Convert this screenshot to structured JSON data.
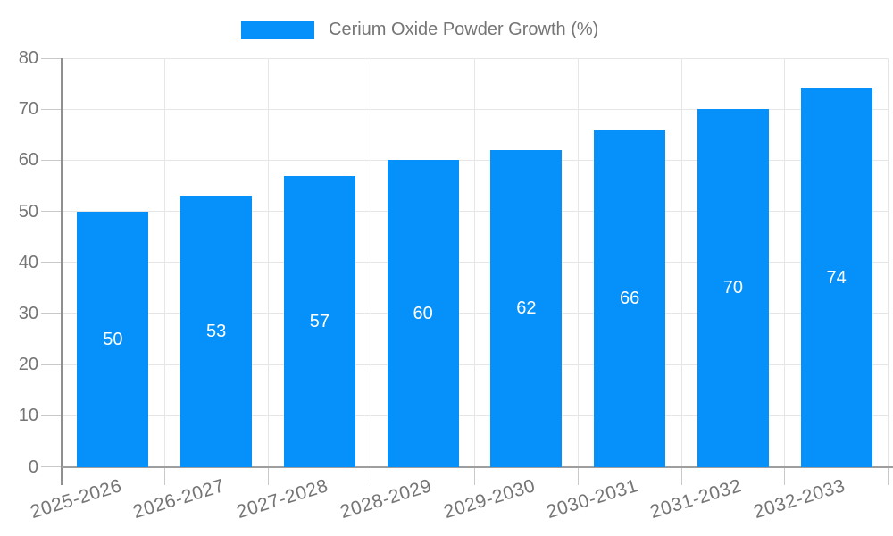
{
  "legend": {
    "label": "Cerium Oxide Powder Growth (%)"
  },
  "chart_data": {
    "type": "bar",
    "categories": [
      "2025-2026",
      "2026-2027",
      "2027-2028",
      "2028-2029",
      "2029-2030",
      "2030-2031",
      "2031-2032",
      "2032-2033"
    ],
    "series": [
      {
        "name": "Cerium Oxide Powder Growth (%)",
        "values": [
          50,
          53,
          57,
          60,
          62,
          66,
          70,
          74
        ]
      }
    ],
    "yticks": [
      0,
      10,
      20,
      30,
      40,
      50,
      60,
      70,
      80
    ],
    "ylim": [
      0,
      80
    ],
    "grid": true,
    "legend_position": "top",
    "value_labels_position": "inside-center",
    "colors": {
      "bar": "#0690fa",
      "value_label": "#ffffff",
      "axis_text": "#757575",
      "grid_line": "#e6e6e6",
      "axis_line": "#9e9e9e",
      "tick_line": "#c9c9c9",
      "y_axis_line": "#8f8f8f"
    }
  }
}
